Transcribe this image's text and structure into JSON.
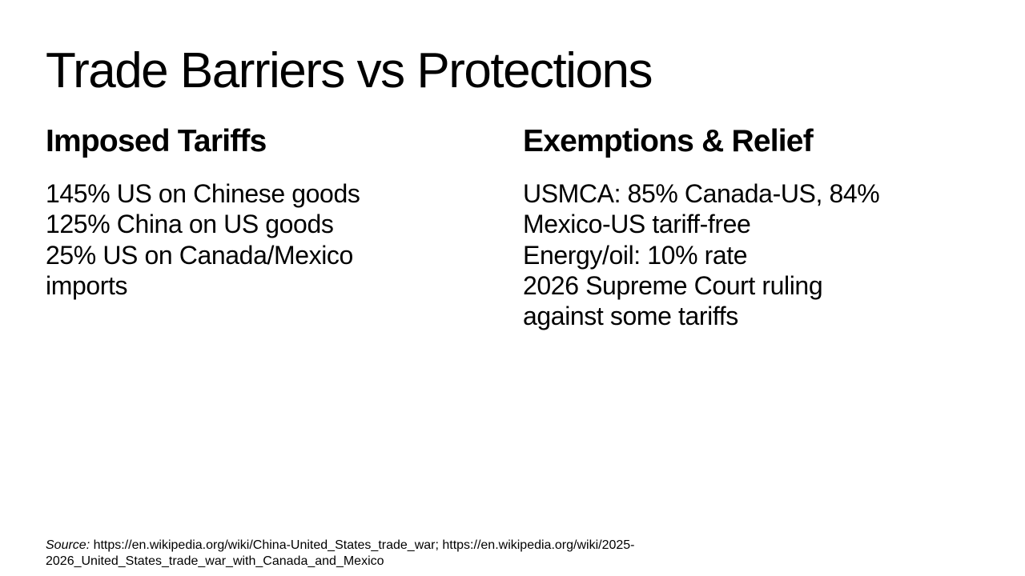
{
  "slide": {
    "title": "Trade Barriers vs Protections",
    "left": {
      "heading": "Imposed Tariffs",
      "items": [
        "145% US on Chinese goods",
        "125% China on US goods",
        "25% US on Canada/Mexico imports"
      ]
    },
    "right": {
      "heading": "Exemptions & Relief",
      "items": [
        "USMCA: 85% Canada-US, 84% Mexico-US tariff-free",
        "Energy/oil: 10% rate",
        "2026 Supreme Court ruling against some tariffs"
      ]
    },
    "source": {
      "label": "Source:",
      "text": " https://en.wikipedia.org/wiki/China-United_States_trade_war; https://en.wikipedia.org/wiki/2025-2026_United_States_trade_war_with_Canada_and_Mexico"
    }
  }
}
